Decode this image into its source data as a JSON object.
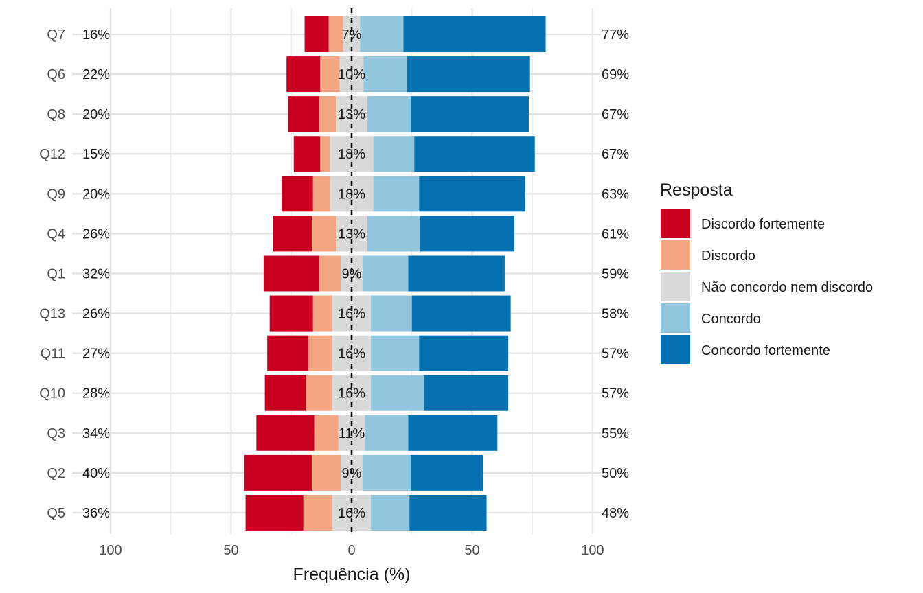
{
  "chart_data": {
    "type": "bar",
    "subtype": "diverging-stacked-horizontal",
    "xlabel": "Frequência (%)",
    "ylabel": "",
    "xlim": [
      -100,
      100
    ],
    "x_ticks": [
      -100,
      -50,
      0,
      50,
      100
    ],
    "x_tick_labels": [
      "100",
      "50",
      "0",
      "50",
      "100"
    ],
    "grid": true,
    "legend_position": "right",
    "legend_title": "Resposta",
    "center_line": "dashed at 0",
    "categories": [
      "Q7",
      "Q6",
      "Q8",
      "Q12",
      "Q9",
      "Q4",
      "Q1",
      "Q13",
      "Q11",
      "Q10",
      "Q3",
      "Q2",
      "Q5"
    ],
    "series": [
      {
        "name": "Discordo fortemente",
        "color": "#ca0020",
        "values": [
          10,
          14,
          13,
          11,
          13,
          16,
          23,
          18,
          17,
          17,
          24,
          28,
          24
        ]
      },
      {
        "name": "Discordo",
        "color": "#f4a582",
        "values": [
          6,
          8,
          7,
          4,
          7,
          10,
          9,
          8,
          10,
          11,
          10,
          12,
          12
        ]
      },
      {
        "name": "Não concordo nem discordo",
        "color": "#d9d9d9",
        "values": [
          7,
          10,
          13,
          18,
          18,
          13,
          9,
          16,
          16,
          16,
          11,
          9,
          16
        ]
      },
      {
        "name": "Concordo",
        "color": "#92c5de",
        "values": [
          18,
          18,
          18,
          17,
          19,
          22,
          19,
          17,
          20,
          22,
          18,
          20,
          16
        ]
      },
      {
        "name": "Concordo fortemente",
        "color": "#0571b0",
        "values": [
          59,
          51,
          49,
          50,
          44,
          39,
          40,
          41,
          37,
          35,
          37,
          30,
          32
        ]
      }
    ],
    "left_labels": [
      "16%",
      "22%",
      "20%",
      "15%",
      "20%",
      "26%",
      "32%",
      "26%",
      "27%",
      "28%",
      "34%",
      "40%",
      "36%"
    ],
    "center_labels": [
      "7%",
      "10%",
      "13%",
      "18%",
      "18%",
      "13%",
      "9%",
      "16%",
      "16%",
      "16%",
      "11%",
      "9%",
      "16%"
    ],
    "right_labels": [
      "77%",
      "69%",
      "67%",
      "67%",
      "63%",
      "61%",
      "59%",
      "58%",
      "57%",
      "57%",
      "55%",
      "50%",
      "48%"
    ]
  }
}
